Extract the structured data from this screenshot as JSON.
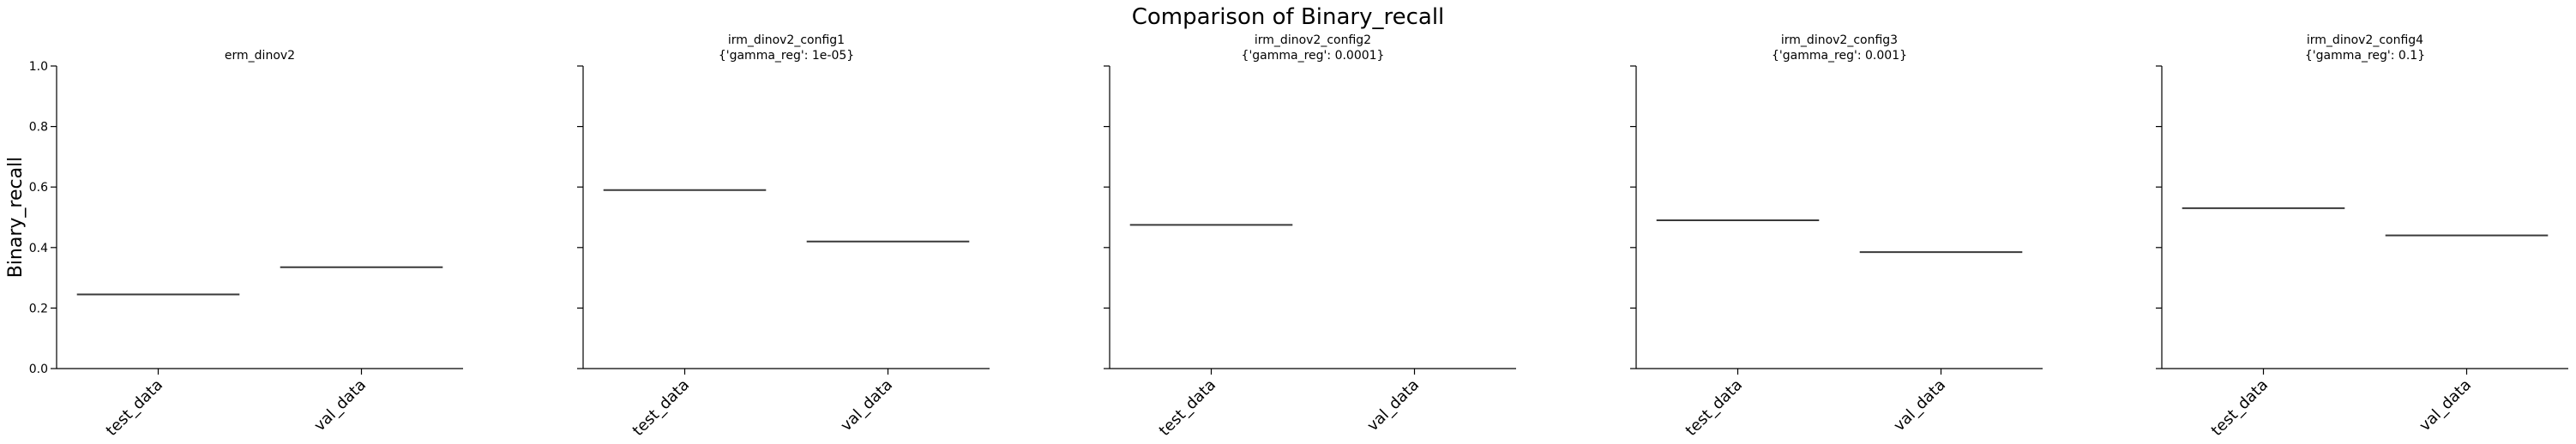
{
  "suptitle": "Comparison of Binary_recall",
  "chart_data": [
    {
      "type": "line",
      "title": "erm_dinov2",
      "subtitle": "",
      "categories": [
        "test_data",
        "val_data"
      ],
      "values": [
        0.245,
        0.335
      ],
      "ylabel": "Binary_recall",
      "ylim": [
        0,
        1
      ],
      "yticks": [
        "0.0",
        "0.2",
        "0.4",
        "0.6",
        "0.8",
        "1.0"
      ]
    },
    {
      "type": "line",
      "title": "irm_dinov2_config1",
      "subtitle": "{'gamma_reg': 1e-05}",
      "categories": [
        "test_data",
        "val_data"
      ],
      "values": [
        0.59,
        0.42
      ],
      "ylim": [
        0,
        1
      ]
    },
    {
      "type": "line",
      "title": "irm_dinov2_config2",
      "subtitle": "{'gamma_reg': 0.0001}",
      "categories": [
        "test_data",
        "val_data"
      ],
      "values": [
        0.475,
        null
      ],
      "ylim": [
        0,
        1
      ]
    },
    {
      "type": "line",
      "title": "irm_dinov2_config3",
      "subtitle": "{'gamma_reg': 0.001}",
      "categories": [
        "test_data",
        "val_data"
      ],
      "values": [
        0.49,
        0.385
      ],
      "ylim": [
        0,
        1
      ]
    },
    {
      "type": "line",
      "title": "irm_dinov2_config4",
      "subtitle": "{'gamma_reg': 0.1}",
      "categories": [
        "test_data",
        "val_data"
      ],
      "values": [
        0.53,
        0.44
      ],
      "ylim": [
        0,
        1
      ]
    }
  ]
}
